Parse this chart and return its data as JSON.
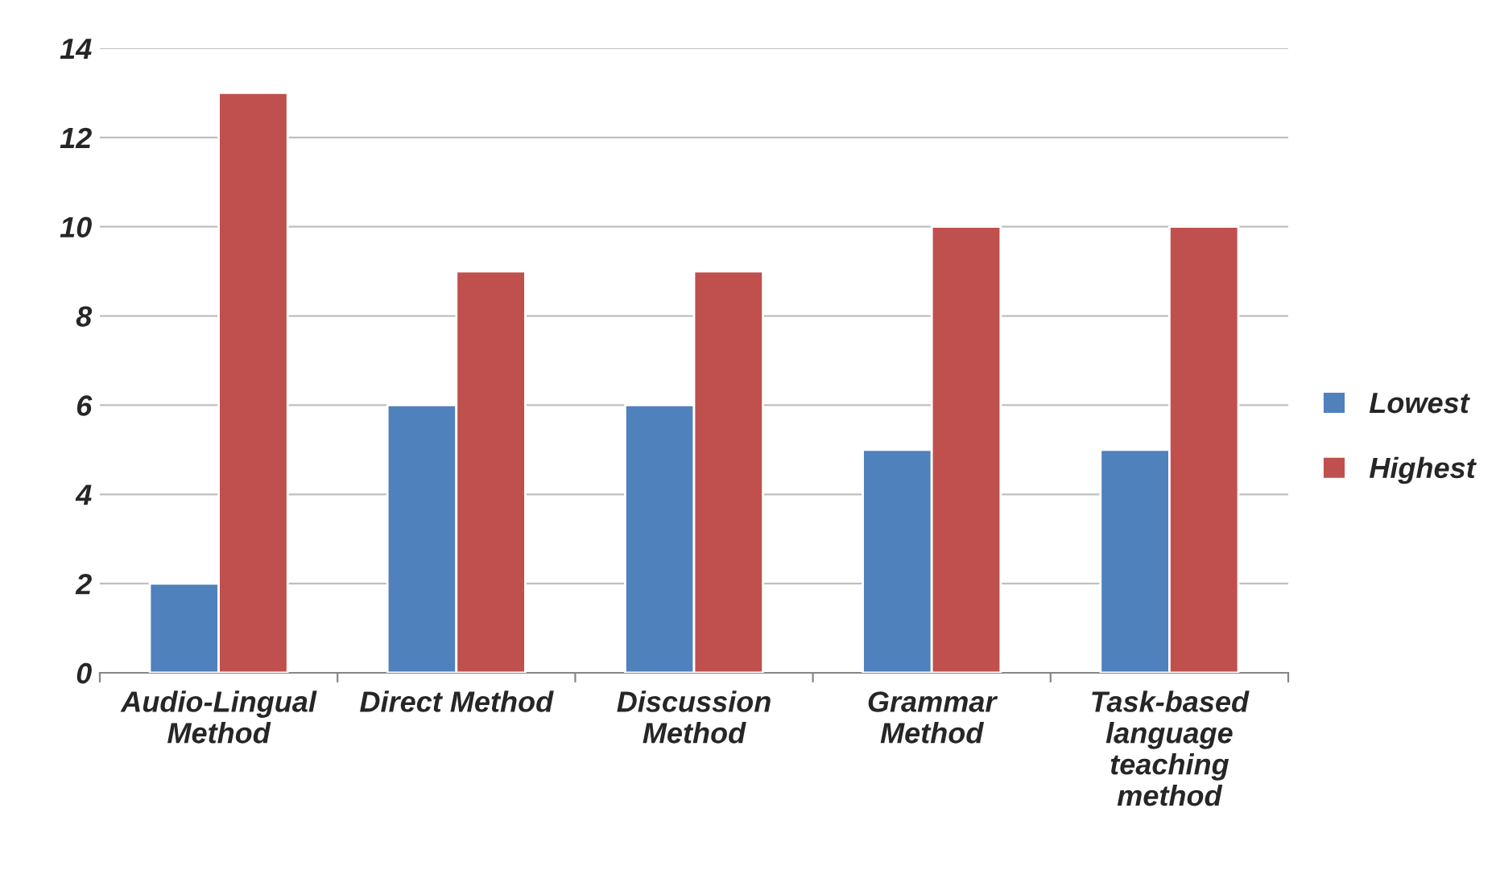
{
  "chart_data": {
    "type": "bar",
    "categories": [
      "Audio-Lingual\nMethod",
      "Direct Method",
      "Discussion\nMethod",
      "Grammar\nMethod",
      "Task-based\nlanguage\nteaching\nmethod"
    ],
    "series": [
      {
        "name": "Lowest",
        "color": "#4f81bd",
        "values": [
          2,
          6,
          6,
          5,
          5
        ]
      },
      {
        "name": "Highest",
        "color": "#c0504d",
        "values": [
          13,
          9,
          9,
          10,
          10
        ]
      }
    ],
    "ylim": [
      0,
      14
    ],
    "yticks": [
      0,
      2,
      4,
      6,
      8,
      10,
      12,
      14
    ],
    "grid": "y",
    "legend": "right"
  }
}
